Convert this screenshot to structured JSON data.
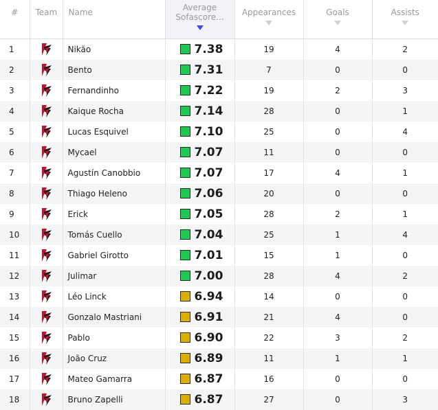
{
  "header": {
    "rank": "#",
    "team": "Team",
    "name": "Name",
    "rating_line1": "Average",
    "rating_line2": "Sofascore...",
    "appearances": "Appearances",
    "goals": "Goals",
    "assists": "Assists"
  },
  "colors": {
    "green": "#1ec853",
    "yellow": "#d9af00",
    "crest_red": "#c8102e",
    "sort_active": "#374df5"
  },
  "players": [
    {
      "rank": "1",
      "name": "Nikão",
      "rating": "7.38",
      "rating_color": "green",
      "apps": "19",
      "goals": "4",
      "assists": "2"
    },
    {
      "rank": "2",
      "name": "Bento",
      "rating": "7.31",
      "rating_color": "green",
      "apps": "7",
      "goals": "0",
      "assists": "0"
    },
    {
      "rank": "3",
      "name": "Fernandinho",
      "rating": "7.22",
      "rating_color": "green",
      "apps": "19",
      "goals": "2",
      "assists": "3"
    },
    {
      "rank": "4",
      "name": "Kaique Rocha",
      "rating": "7.14",
      "rating_color": "green",
      "apps": "28",
      "goals": "0",
      "assists": "1"
    },
    {
      "rank": "5",
      "name": "Lucas Esquivel",
      "rating": "7.10",
      "rating_color": "green",
      "apps": "25",
      "goals": "0",
      "assists": "4"
    },
    {
      "rank": "6",
      "name": "Mycael",
      "rating": "7.07",
      "rating_color": "green",
      "apps": "11",
      "goals": "0",
      "assists": "0"
    },
    {
      "rank": "7",
      "name": "Agustín Canobbio",
      "rating": "7.07",
      "rating_color": "green",
      "apps": "17",
      "goals": "4",
      "assists": "1"
    },
    {
      "rank": "8",
      "name": "Thiago Heleno",
      "rating": "7.06",
      "rating_color": "green",
      "apps": "20",
      "goals": "0",
      "assists": "0"
    },
    {
      "rank": "9",
      "name": "Erick",
      "rating": "7.05",
      "rating_color": "green",
      "apps": "28",
      "goals": "2",
      "assists": "1"
    },
    {
      "rank": "10",
      "name": "Tomás Cuello",
      "rating": "7.04",
      "rating_color": "green",
      "apps": "25",
      "goals": "1",
      "assists": "4"
    },
    {
      "rank": "11",
      "name": "Gabriel Girotto",
      "rating": "7.01",
      "rating_color": "green",
      "apps": "15",
      "goals": "1",
      "assists": "0"
    },
    {
      "rank": "12",
      "name": "Julimar",
      "rating": "7.00",
      "rating_color": "green",
      "apps": "28",
      "goals": "4",
      "assists": "2"
    },
    {
      "rank": "13",
      "name": "Léo Linck",
      "rating": "6.94",
      "rating_color": "yellow",
      "apps": "14",
      "goals": "0",
      "assists": "0"
    },
    {
      "rank": "14",
      "name": "Gonzalo Mastriani",
      "rating": "6.91",
      "rating_color": "yellow",
      "apps": "21",
      "goals": "4",
      "assists": "0"
    },
    {
      "rank": "15",
      "name": "Pablo",
      "rating": "6.90",
      "rating_color": "yellow",
      "apps": "22",
      "goals": "3",
      "assists": "2"
    },
    {
      "rank": "16",
      "name": "João Cruz",
      "rating": "6.89",
      "rating_color": "yellow",
      "apps": "11",
      "goals": "1",
      "assists": "1"
    },
    {
      "rank": "17",
      "name": "Mateo Gamarra",
      "rating": "6.87",
      "rating_color": "yellow",
      "apps": "16",
      "goals": "0",
      "assists": "0"
    },
    {
      "rank": "18",
      "name": "Bruno Zapelli",
      "rating": "6.87",
      "rating_color": "yellow",
      "apps": "27",
      "goals": "0",
      "assists": "3"
    }
  ]
}
